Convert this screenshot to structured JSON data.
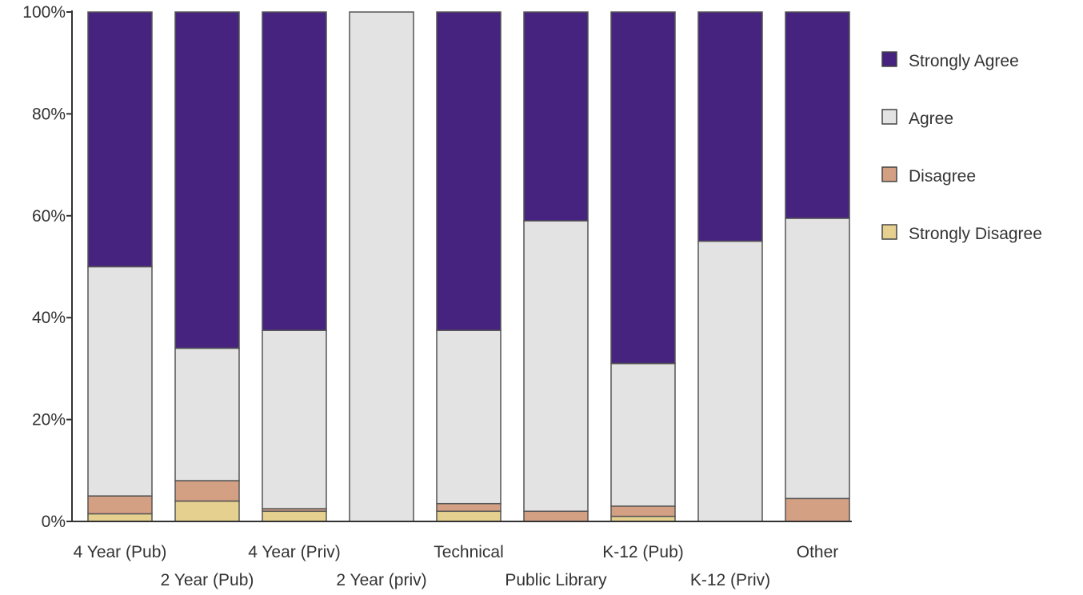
{
  "chart_data": {
    "type": "bar",
    "stacked": true,
    "percent": true,
    "title": "",
    "xlabel": "",
    "ylabel": "",
    "ylim": [
      0,
      100
    ],
    "y_ticks": [
      "0%",
      "20%",
      "40%",
      "60%",
      "80%",
      "100%"
    ],
    "grid": false,
    "legend_position": "right",
    "categories": [
      "4 Year (Pub)",
      "2 Year (Pub)",
      "4 Year (Priv)",
      "2 Year (priv)",
      "Technical",
      "Public Library",
      "K-12 (Pub)",
      "K-12 (Priv)",
      "Other"
    ],
    "series": [
      {
        "name": "Strongly Disagree",
        "color": "#e6d08f",
        "values": [
          1.5,
          4,
          2,
          0,
          2,
          0,
          1,
          0,
          0
        ]
      },
      {
        "name": "Disagree",
        "color": "#d4a084",
        "values": [
          3.5,
          4,
          0.5,
          0,
          1.5,
          2,
          2,
          0,
          4.5
        ]
      },
      {
        "name": "Agree",
        "color": "#e3e3e3",
        "values": [
          45,
          26,
          35,
          100,
          34,
          57,
          28,
          55,
          55
        ]
      },
      {
        "name": "Strongly Agree",
        "color": "#46237e",
        "values": [
          50,
          66,
          62.5,
          0,
          62.5,
          41,
          69,
          45,
          40.5
        ]
      }
    ]
  }
}
